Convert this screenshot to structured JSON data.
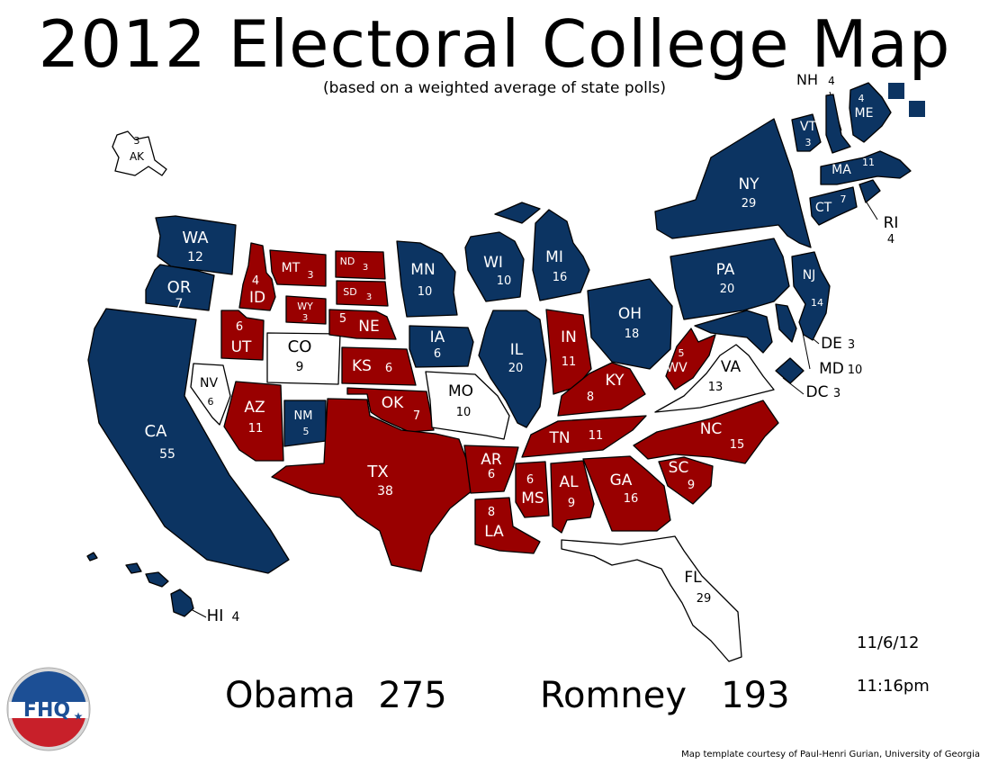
{
  "header": {
    "title": "2012 Electoral College Map",
    "subtitle": "(based on a weighted average of state polls)"
  },
  "colors": {
    "obama": "#0c3462",
    "romney": "#990000",
    "tossup": "#ffffff"
  },
  "states": [
    {
      "id": "AK",
      "ev": "3",
      "winner": "tossup"
    },
    {
      "id": "HI",
      "ev": "4",
      "winner": "obama"
    },
    {
      "id": "WA",
      "ev": "12",
      "winner": "obama"
    },
    {
      "id": "OR",
      "ev": "7",
      "winner": "obama"
    },
    {
      "id": "CA",
      "ev": "55",
      "winner": "obama"
    },
    {
      "id": "NV",
      "ev": "6",
      "winner": "tossup"
    },
    {
      "id": "ID",
      "ev": "4",
      "winner": "romney"
    },
    {
      "id": "MT",
      "ev": "3",
      "winner": "romney"
    },
    {
      "id": "WY",
      "ev": "3",
      "winner": "romney"
    },
    {
      "id": "UT",
      "ev": "6",
      "winner": "romney"
    },
    {
      "id": "AZ",
      "ev": "11",
      "winner": "romney"
    },
    {
      "id": "CO",
      "ev": "9",
      "winner": "tossup"
    },
    {
      "id": "NM",
      "ev": "5",
      "winner": "obama"
    },
    {
      "id": "ND",
      "ev": "3",
      "winner": "romney"
    },
    {
      "id": "SD",
      "ev": "3",
      "winner": "romney"
    },
    {
      "id": "NE",
      "ev": "5",
      "winner": "romney"
    },
    {
      "id": "KS",
      "ev": "6",
      "winner": "romney"
    },
    {
      "id": "OK",
      "ev": "7",
      "winner": "romney"
    },
    {
      "id": "TX",
      "ev": "38",
      "winner": "romney"
    },
    {
      "id": "MN",
      "ev": "10",
      "winner": "obama"
    },
    {
      "id": "IA",
      "ev": "6",
      "winner": "obama"
    },
    {
      "id": "MO",
      "ev": "10",
      "winner": "tossup"
    },
    {
      "id": "AR",
      "ev": "6",
      "winner": "romney"
    },
    {
      "id": "LA",
      "ev": "8",
      "winner": "romney"
    },
    {
      "id": "WI",
      "ev": "10",
      "winner": "obama"
    },
    {
      "id": "IL",
      "ev": "20",
      "winner": "obama"
    },
    {
      "id": "MI",
      "ev": "16",
      "winner": "obama"
    },
    {
      "id": "IN",
      "ev": "11",
      "winner": "romney"
    },
    {
      "id": "OH",
      "ev": "18",
      "winner": "obama"
    },
    {
      "id": "KY",
      "ev": "8",
      "winner": "romney"
    },
    {
      "id": "TN",
      "ev": "11",
      "winner": "romney"
    },
    {
      "id": "MS",
      "ev": "6",
      "winner": "romney"
    },
    {
      "id": "AL",
      "ev": "9",
      "winner": "romney"
    },
    {
      "id": "GA",
      "ev": "16",
      "winner": "romney"
    },
    {
      "id": "FL",
      "ev": "29",
      "winner": "tossup"
    },
    {
      "id": "SC",
      "ev": "9",
      "winner": "romney"
    },
    {
      "id": "NC",
      "ev": "15",
      "winner": "romney"
    },
    {
      "id": "VA",
      "ev": "13",
      "winner": "tossup"
    },
    {
      "id": "WV",
      "ev": "5",
      "winner": "romney"
    },
    {
      "id": "PA",
      "ev": "20",
      "winner": "obama"
    },
    {
      "id": "NY",
      "ev": "29",
      "winner": "obama"
    },
    {
      "id": "VT",
      "ev": "3",
      "winner": "obama"
    },
    {
      "id": "NH",
      "ev": "4",
      "winner": "obama"
    },
    {
      "id": "ME",
      "ev": "4",
      "winner": "obama"
    },
    {
      "id": "MA",
      "ev": "11",
      "winner": "obama"
    },
    {
      "id": "RI",
      "ev": "4",
      "winner": "obama"
    },
    {
      "id": "CT",
      "ev": "7",
      "winner": "obama"
    },
    {
      "id": "NJ",
      "ev": "14",
      "winner": "obama"
    },
    {
      "id": "DE",
      "ev": "3",
      "winner": "obama"
    },
    {
      "id": "MD",
      "ev": "10",
      "winner": "obama"
    },
    {
      "id": "DC",
      "ev": "3",
      "winner": "obama"
    }
  ],
  "totals": {
    "obama_label": "Obama",
    "obama_ev": "275",
    "romney_label": "Romney",
    "romney_ev": "193"
  },
  "timestamp": {
    "date": "11/6/12",
    "time": "11:16pm"
  },
  "footer": {
    "credit": "Map template courtesy of Paul-Henri Gurian, University of Georgia"
  },
  "logo": {
    "text": "FHQ"
  }
}
